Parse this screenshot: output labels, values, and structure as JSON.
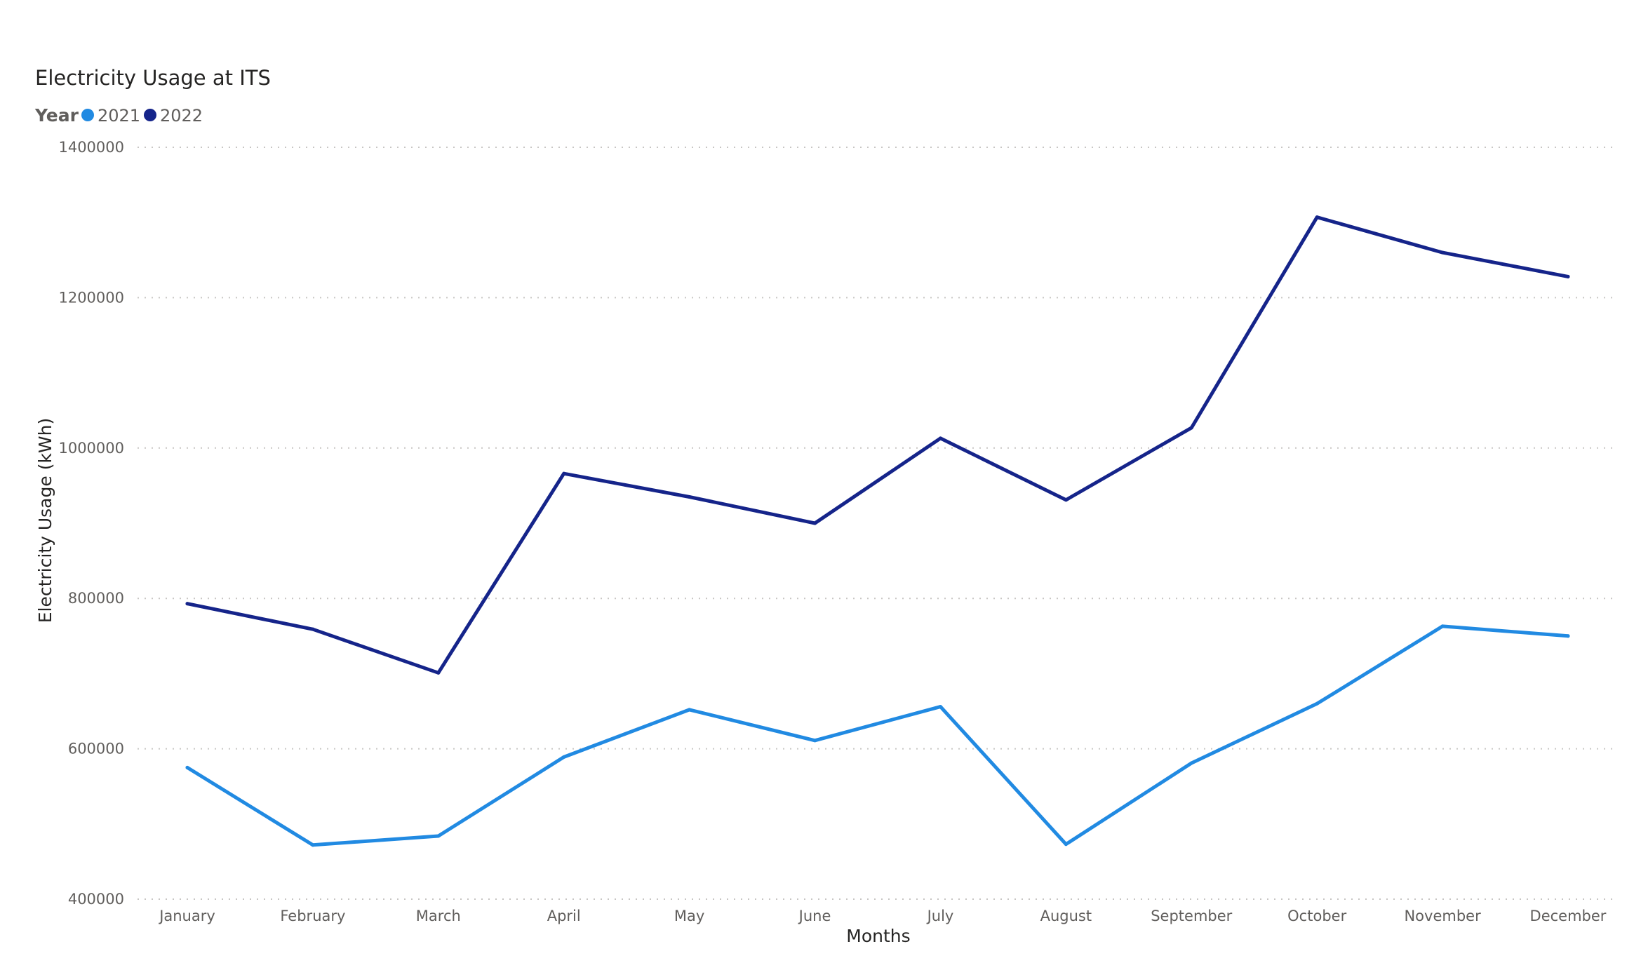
{
  "chart_data": {
    "type": "line",
    "title": "Electricity Usage at ITS",
    "xlabel": "Months",
    "ylabel": "Electricity Usage (kWh)",
    "legend": {
      "title": "Year",
      "placement": "top-left"
    },
    "ylim": [
      400000,
      1400000
    ],
    "yticks": [
      "400000",
      "600000",
      "800000",
      "1000000",
      "1200000",
      "1400000"
    ],
    "grid": true,
    "categories": [
      "January",
      "February",
      "March",
      "April",
      "May",
      "June",
      "July",
      "August",
      "September",
      "October",
      "November",
      "December"
    ],
    "series": [
      {
        "name": "2021",
        "color": "#218ae2",
        "values": [
          575000,
          472000,
          484000,
          589000,
          652000,
          611000,
          656000,
          473000,
          581000,
          660000,
          763000,
          750000
        ]
      },
      {
        "name": "2022",
        "color": "#15248a",
        "values": [
          793000,
          759000,
          701000,
          966000,
          935000,
          900000,
          1013000,
          931000,
          1027000,
          1307000,
          1260000,
          1228000
        ]
      }
    ]
  }
}
